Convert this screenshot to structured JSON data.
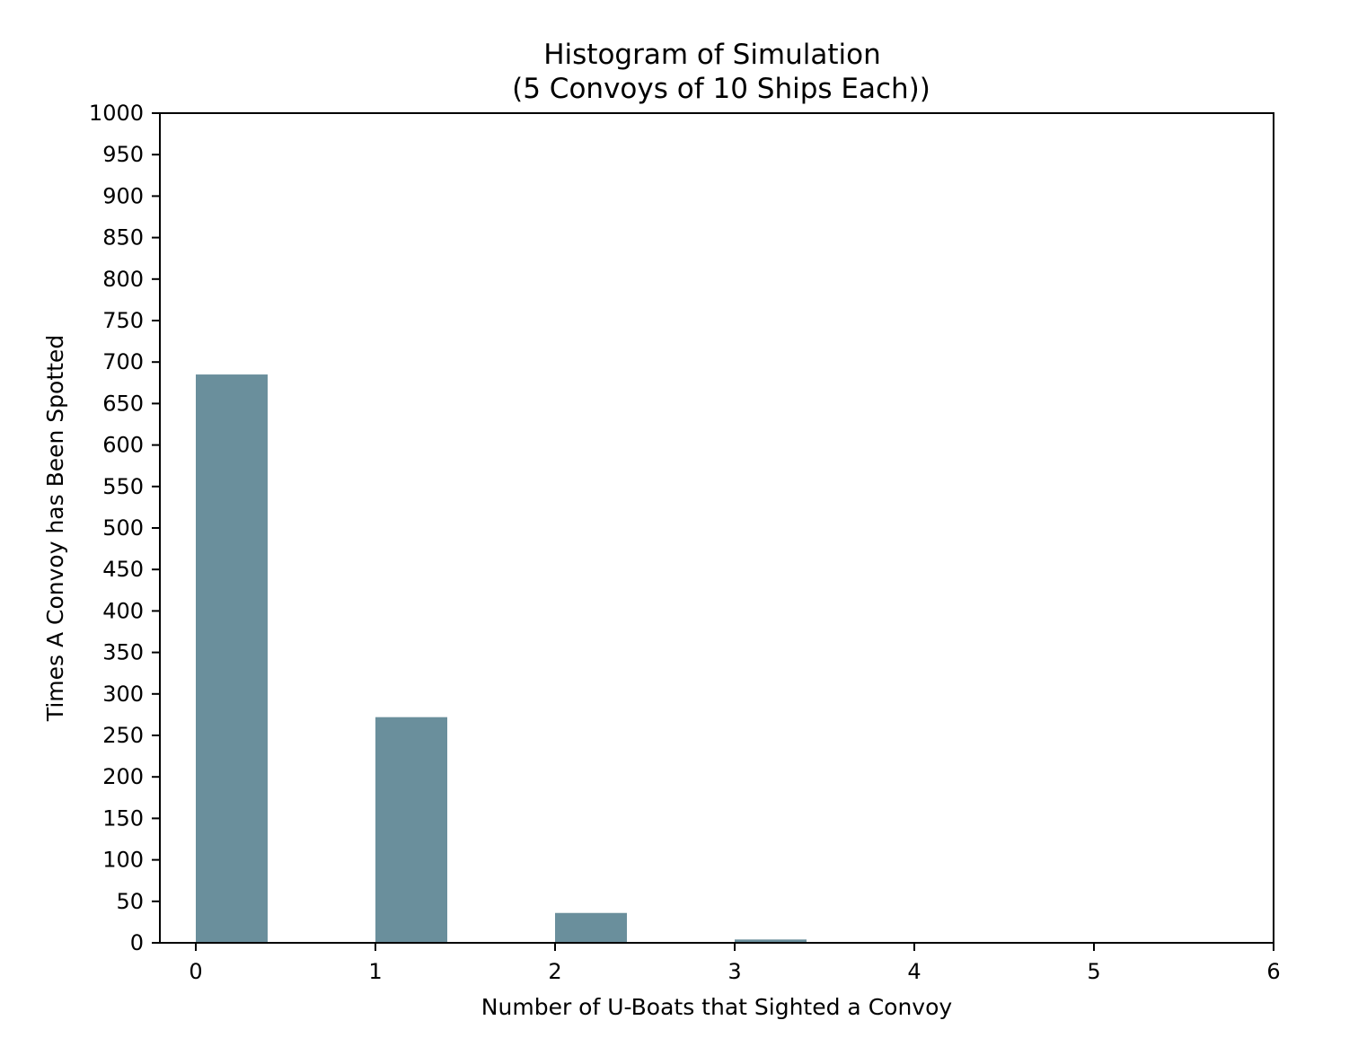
{
  "chart_data": {
    "type": "bar",
    "title": "Histogram of Simulation",
    "subtitle": "(5 Convoys of 10 Ships Each))",
    "xlabel": "Number of U-Boats that Sighted a Convoy",
    "ylabel": "Times A Convoy has Been Spotted",
    "xlim": [
      -0.2,
      6
    ],
    "ylim": [
      0,
      1000
    ],
    "xticks": [
      0,
      1,
      2,
      3,
      4,
      5,
      6
    ],
    "yticks": [
      0,
      50,
      100,
      150,
      200,
      250,
      300,
      350,
      400,
      450,
      500,
      550,
      600,
      650,
      700,
      750,
      800,
      850,
      900,
      950,
      1000
    ],
    "bar_width": 0.4,
    "bars": [
      {
        "x": 0,
        "value": 685
      },
      {
        "x": 1,
        "value": 272
      },
      {
        "x": 2,
        "value": 36
      },
      {
        "x": 3,
        "value": 4
      },
      {
        "x": 4,
        "value": 0
      },
      {
        "x": 5,
        "value": 0
      }
    ],
    "bar_color": "#6a8f9c",
    "grid": false,
    "legend": "none"
  }
}
